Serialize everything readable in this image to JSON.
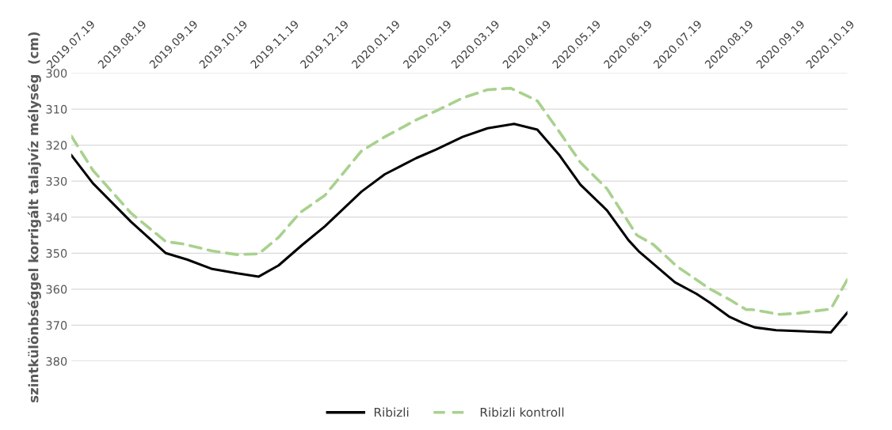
{
  "chart_data": {
    "type": "line",
    "ylabel": "szintkülönbséggel korrigált talajvíz mélység  (cm)",
    "ylim": [
      380,
      300
    ],
    "yticks": [
      300,
      310,
      320,
      330,
      340,
      350,
      360,
      370,
      380
    ],
    "xlim": [
      "2019-07-19",
      "2020-10-29"
    ],
    "xticks": [
      {
        "value": "2019-07-19",
        "label": "2019.07.19"
      },
      {
        "value": "2019-08-19",
        "label": "2019.08.19"
      },
      {
        "value": "2019-09-19",
        "label": "2019.09.19"
      },
      {
        "value": "2019-10-19",
        "label": "2019.10.19"
      },
      {
        "value": "2019-11-19",
        "label": "2019.11.19"
      },
      {
        "value": "2019-12-19",
        "label": "2019.12.19"
      },
      {
        "value": "2020-01-19",
        "label": "2020.01.19"
      },
      {
        "value": "2020-02-19",
        "label": "2020.02.19"
      },
      {
        "value": "2020-03-19",
        "label": "2020.03.19"
      },
      {
        "value": "2020-04-19",
        "label": "2020.04.19"
      },
      {
        "value": "2020-05-19",
        "label": "2020.05.19"
      },
      {
        "value": "2020-06-19",
        "label": "2020.06.19"
      },
      {
        "value": "2020-07-19",
        "label": "2020.07.19"
      },
      {
        "value": "2020-08-19",
        "label": "2020.08.19"
      },
      {
        "value": "2020-09-19",
        "label": "2020.09.19"
      },
      {
        "value": "2020-10-19",
        "label": "2020.10.19"
      }
    ],
    "grid": "y",
    "legend": "bottom",
    "marker": "none",
    "series": [
      {
        "name": "Ribizli",
        "color": "#000000",
        "line_style": "solid",
        "x": [
          "2019-07-19",
          "2019-08-01",
          "2019-08-24",
          "2019-09-14",
          "2019-09-27",
          "2019-10-12",
          "2019-10-27",
          "2019-11-09",
          "2019-11-21",
          "2019-12-05",
          "2019-12-19",
          "2020-01-10",
          "2020-01-24",
          "2020-02-12",
          "2020-02-24",
          "2020-03-11",
          "2020-03-26",
          "2020-04-11",
          "2020-04-25",
          "2020-05-08",
          "2020-05-21",
          "2020-06-06",
          "2020-06-19",
          "2020-06-25",
          "2020-07-17",
          "2020-07-30",
          "2020-08-07",
          "2020-08-19",
          "2020-08-27",
          "2020-09-03",
          "2020-09-16",
          "2020-10-19",
          "2020-10-29"
        ],
        "values": [
          322.8,
          330.6,
          341.3,
          350.0,
          351.8,
          354.4,
          355.6,
          356.5,
          353.4,
          347.8,
          342.5,
          332.9,
          328.1,
          323.6,
          321.2,
          317.7,
          315.3,
          314.1,
          315.7,
          322.6,
          331.0,
          338.1,
          346.4,
          349.4,
          358.1,
          361.3,
          363.7,
          367.7,
          369.4,
          370.6,
          371.4,
          372.0,
          366.5
        ]
      },
      {
        "name": "Ribizli kontroll",
        "color": "#a9d18e",
        "line_style": "dashed",
        "x": [
          "2019-07-19",
          "2019-08-01",
          "2019-08-24",
          "2019-09-14",
          "2019-09-24",
          "2019-10-12",
          "2019-10-27",
          "2019-11-09",
          "2019-11-21",
          "2019-12-04",
          "2019-12-19",
          "2020-01-10",
          "2020-01-24",
          "2020-02-12",
          "2020-02-24",
          "2020-03-11",
          "2020-03-26",
          "2020-04-09",
          "2020-04-25",
          "2020-05-08",
          "2020-05-21",
          "2020-06-06",
          "2020-06-24",
          "2020-07-04",
          "2020-07-18",
          "2020-08-07",
          "2020-08-19",
          "2020-08-29",
          "2020-09-02",
          "2020-09-18",
          "2020-09-29",
          "2020-10-19",
          "2020-10-29"
        ],
        "values": [
          317.5,
          327.0,
          338.9,
          346.8,
          347.4,
          349.4,
          350.4,
          350.2,
          345.6,
          338.7,
          333.9,
          321.6,
          317.7,
          313.0,
          310.5,
          306.9,
          304.6,
          304.2,
          307.7,
          316.1,
          324.8,
          332.1,
          345.0,
          347.6,
          353.6,
          359.9,
          362.9,
          365.7,
          365.7,
          367.0,
          366.7,
          365.5,
          357.3
        ]
      }
    ]
  }
}
